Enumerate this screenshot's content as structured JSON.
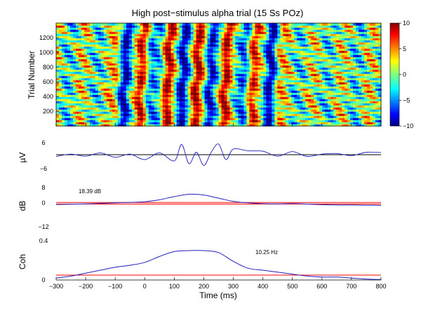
{
  "chart_data": {
    "type": "heatmap",
    "title": "High post−stimulus alpha trial (15 Ss POz)",
    "xlabel": "Time (ms)",
    "xlim": [
      -300,
      800
    ],
    "xticks": [
      "−300",
      "−200",
      "−100",
      "0",
      "100",
      "200",
      "300",
      "400",
      "500",
      "600",
      "700",
      "800"
    ],
    "erpimage": {
      "ylabel": "Trial Number",
      "ylim": [
        0,
        1400
      ],
      "yticks": [
        "200",
        "400",
        "600",
        "800",
        "1000",
        "1200"
      ],
      "colormap": "jet",
      "clim": [
        -10,
        10
      ],
      "colorbar_ticks": [
        "10",
        "5",
        "0",
        "−5",
        "−10"
      ],
      "alpha_frequency_hz": 10.25,
      "wave_peak_latencies_ms_at_trial_0": [
        -80,
        -10,
        65,
        120,
        165,
        205,
        260,
        345,
        420
      ]
    },
    "erp": {
      "ylabel": "µV",
      "ylim": [
        -6,
        6
      ],
      "yticks": [
        "6",
        "−6"
      ],
      "x": [
        -300,
        -250,
        -200,
        -150,
        -100,
        -50,
        0,
        50,
        100,
        125,
        150,
        175,
        200,
        225,
        250,
        275,
        300,
        350,
        400,
        450,
        500,
        550,
        600,
        650,
        700,
        750,
        800
      ],
      "y": [
        -0.5,
        0.6,
        -0.4,
        1.2,
        -0.9,
        0.6,
        -2.0,
        1.2,
        -2.6,
        5.2,
        -4.0,
        1.5,
        -4.8,
        1.5,
        5.4,
        -2.0,
        3.0,
        2.2,
        2.0,
        -0.4,
        1.8,
        -0.5,
        0.6,
        0.9,
        -0.1,
        1.5,
        1.4
      ]
    },
    "ersp": {
      "ylabel": "dB",
      "ylim": [
        -12,
        8
      ],
      "yticks": [
        "8",
        "0",
        "−12"
      ],
      "annotation": "18.39 dB",
      "x": [
        -300,
        -200,
        -100,
        0,
        50,
        100,
        150,
        200,
        250,
        300,
        350,
        400,
        450,
        500,
        550,
        600,
        650,
        700,
        750,
        800
      ],
      "y": [
        -0.6,
        -0.3,
        0.2,
        0.8,
        1.8,
        3.4,
        4.6,
        4.2,
        2.6,
        1.0,
        0.2,
        -0.2,
        -0.3,
        -0.1,
        -0.4,
        -0.7,
        -0.9,
        -0.9,
        -1.0,
        -1.1
      ],
      "significance_level": [
        0.4,
        -0.4
      ]
    },
    "coherence": {
      "ylabel": "Coh",
      "ylim": [
        0,
        0.4
      ],
      "yticks": [
        "0.4",
        "0"
      ],
      "annotation": "10.25 Hz",
      "x": [
        -300,
        -250,
        -200,
        -150,
        -100,
        -50,
        0,
        50,
        100,
        150,
        200,
        250,
        300,
        350,
        400,
        450,
        500,
        550,
        600,
        650,
        700,
        750,
        800
      ],
      "y": [
        0.02,
        0.04,
        0.07,
        0.1,
        0.13,
        0.15,
        0.18,
        0.24,
        0.29,
        0.3,
        0.3,
        0.28,
        0.19,
        0.12,
        0.1,
        0.08,
        0.06,
        0.04,
        0.03,
        0.03,
        0.02,
        0.01,
        0.005
      ],
      "significance_level": 0.05
    }
  }
}
